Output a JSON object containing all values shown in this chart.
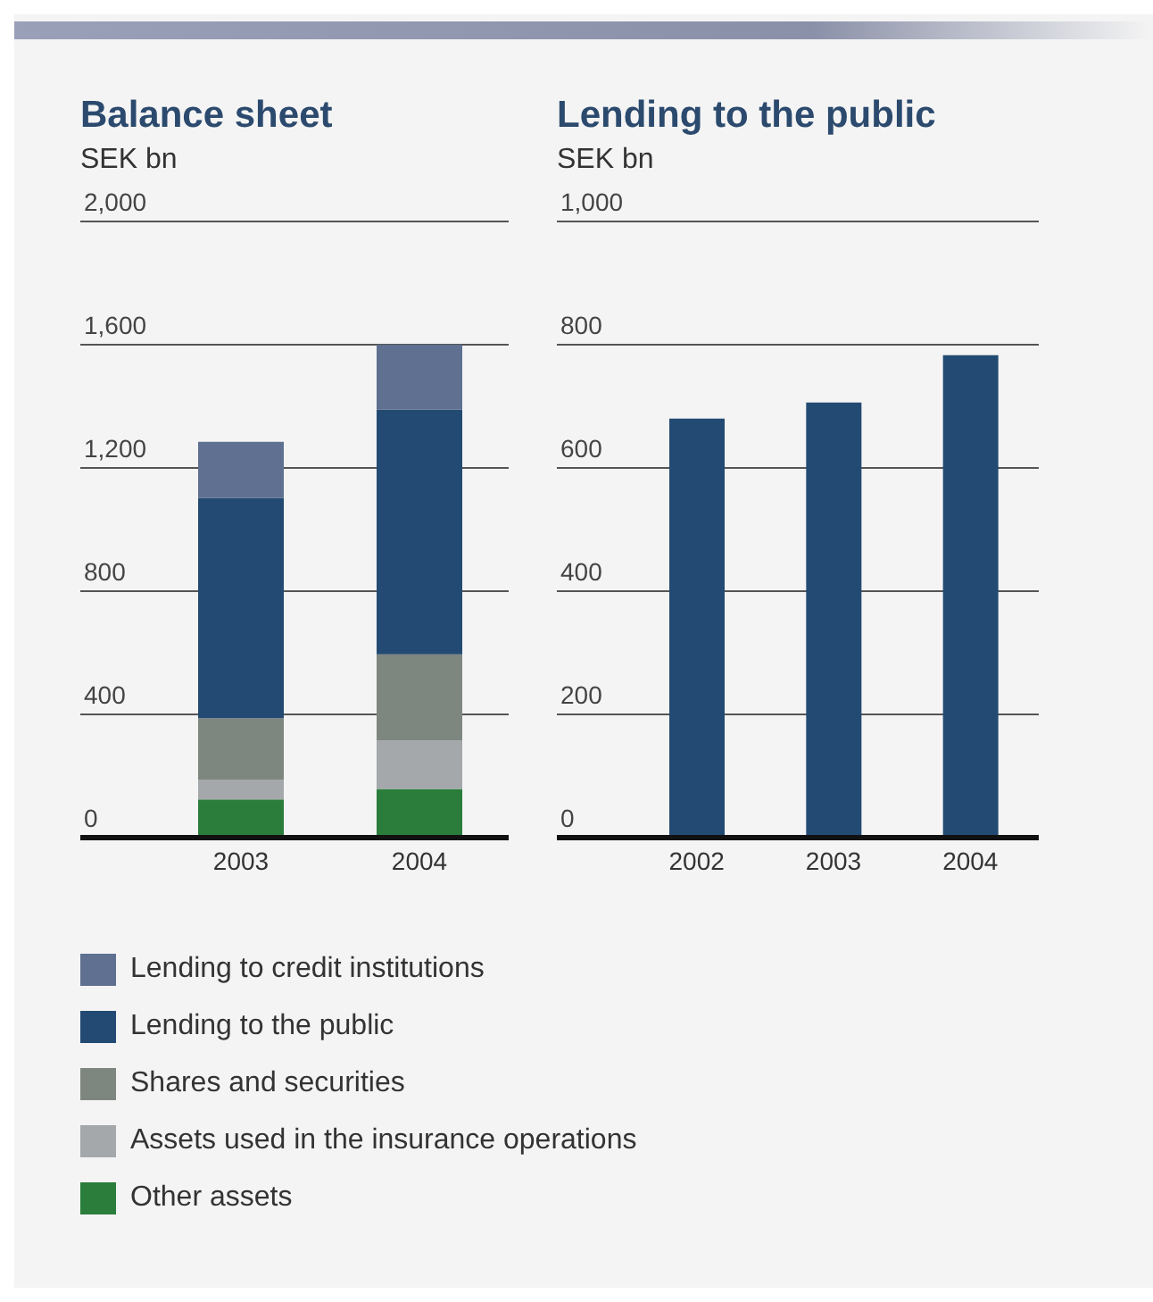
{
  "chart_data": [
    {
      "type": "bar",
      "title": "Balance sheet",
      "subtitle": "SEK bn",
      "categories": [
        "2003",
        "2004"
      ],
      "stacked": true,
      "grid": "y",
      "legend": "bottom",
      "ylim": [
        0,
        2000
      ],
      "yticks": [
        0,
        400,
        800,
        {
          "value": 1200,
          "label": "1,200"
        },
        {
          "value": 1600,
          "label": "1,600"
        },
        {
          "value": 2000,
          "label": "2,000"
        }
      ],
      "series": [
        {
          "name": "Other assets",
          "color": "#2a7d3a",
          "values": [
            124,
            158
          ]
        },
        {
          "name": "Assets used in the insurance operations",
          "color": "#a4a8ab",
          "values": [
            63,
            157
          ]
        },
        {
          "name": "Shares and securities",
          "color": "#7e8680",
          "values": [
            201,
            280
          ]
        },
        {
          "name": "Lending to the public",
          "color": "#234a72",
          "values": [
            715,
            794
          ]
        },
        {
          "name": "Lending to credit institutions",
          "color": "#5f7090",
          "values": [
            182,
            211
          ]
        }
      ]
    },
    {
      "type": "bar",
      "title": "Lending to the public",
      "subtitle": "SEK bn",
      "categories": [
        "2002",
        "2003",
        "2004"
      ],
      "grid": "y",
      "color": "#234a72",
      "ylim": [
        0,
        1000
      ],
      "yticks": [
        0,
        200,
        400,
        600,
        800,
        {
          "value": 1000,
          "label": "1,000"
        }
      ],
      "values": [
        680,
        706,
        783
      ]
    }
  ]
}
